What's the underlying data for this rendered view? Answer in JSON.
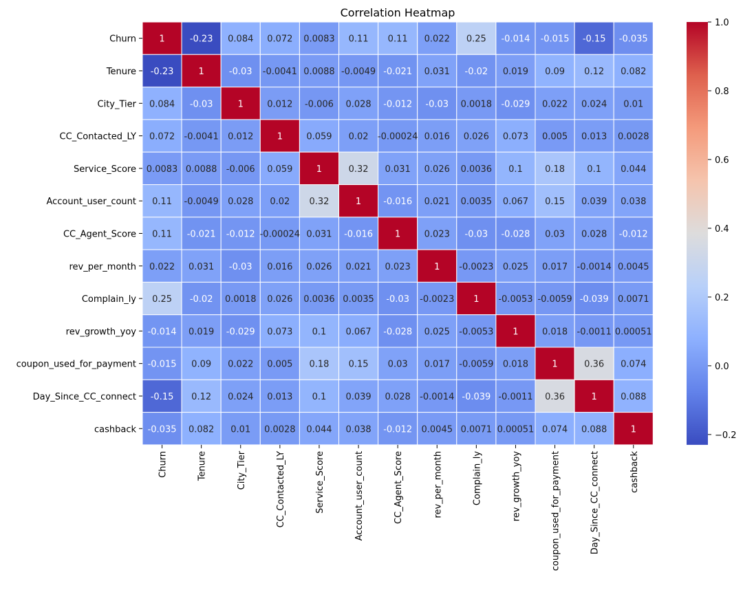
{
  "chart_data": {
    "type": "heatmap",
    "title": "Correlation Heatmap",
    "xlabel": "",
    "ylabel": "",
    "labels": [
      "Churn",
      "Tenure",
      "City_Tier",
      "CC_Contacted_LY",
      "Service_Score",
      "Account_user_count",
      "CC_Agent_Score",
      "rev_per_month",
      "Complain_ly",
      "rev_growth_yoy",
      "coupon_used_for_payment",
      "Day_Since_CC_connect",
      "cashback"
    ],
    "matrix": [
      [
        1,
        -0.23,
        0.084,
        0.072,
        0.0083,
        0.11,
        0.11,
        0.022,
        0.25,
        -0.014,
        -0.015,
        -0.15,
        -0.035
      ],
      [
        -0.23,
        1,
        -0.03,
        -0.0041,
        0.0088,
        -0.0049,
        -0.021,
        0.031,
        -0.02,
        0.019,
        0.09,
        0.12,
        0.082
      ],
      [
        0.084,
        -0.03,
        1,
        0.012,
        -0.006,
        0.028,
        -0.012,
        -0.03,
        0.0018,
        -0.029,
        0.022,
        0.024,
        0.01
      ],
      [
        0.072,
        -0.0041,
        0.012,
        1,
        0.059,
        0.02,
        -0.00024,
        0.016,
        0.026,
        0.073,
        0.005,
        0.013,
        0.0028
      ],
      [
        0.0083,
        0.0088,
        -0.006,
        0.059,
        1,
        0.32,
        0.031,
        0.026,
        0.0036,
        0.1,
        0.18,
        0.1,
        0.044
      ],
      [
        0.11,
        -0.0049,
        0.028,
        0.02,
        0.32,
        1,
        -0.016,
        0.021,
        0.0035,
        0.067,
        0.15,
        0.039,
        0.038
      ],
      [
        0.11,
        -0.021,
        -0.012,
        -0.00024,
        0.031,
        -0.016,
        1,
        0.023,
        -0.03,
        -0.028,
        0.03,
        0.028,
        -0.012
      ],
      [
        0.022,
        0.031,
        -0.03,
        0.016,
        0.026,
        0.021,
        0.023,
        1,
        -0.0023,
        0.025,
        0.017,
        -0.0014,
        0.0045
      ],
      [
        0.25,
        -0.02,
        0.0018,
        0.026,
        0.0036,
        0.0035,
        -0.03,
        -0.0023,
        1,
        -0.0053,
        -0.0059,
        -0.039,
        0.0071
      ],
      [
        -0.014,
        0.019,
        -0.029,
        0.073,
        0.1,
        0.067,
        -0.028,
        0.025,
        -0.0053,
        1,
        0.018,
        -0.0011,
        0.00051
      ],
      [
        -0.015,
        0.09,
        0.022,
        0.005,
        0.18,
        0.15,
        0.03,
        0.017,
        -0.0059,
        0.018,
        1,
        0.36,
        0.074
      ],
      [
        -0.15,
        0.12,
        0.024,
        0.013,
        0.1,
        0.039,
        0.028,
        -0.0014,
        -0.039,
        -0.0011,
        0.36,
        1,
        0.088
      ],
      [
        -0.035,
        0.082,
        0.01,
        0.0028,
        0.044,
        0.038,
        -0.012,
        0.0045,
        0.0071,
        0.00051,
        0.074,
        0.088,
        1
      ]
    ],
    "color_range": [
      -0.23,
      1.0
    ],
    "colormap": "coolwarm",
    "colorbar_ticks": [
      -0.2,
      0.0,
      0.2,
      0.4,
      0.6,
      0.8,
      1.0
    ],
    "colorbar_tick_labels": [
      "−0.2",
      "0.0",
      "0.2",
      "0.4",
      "0.6",
      "0.8",
      "1.0"
    ],
    "annotations": true,
    "grid_lines": "white"
  }
}
